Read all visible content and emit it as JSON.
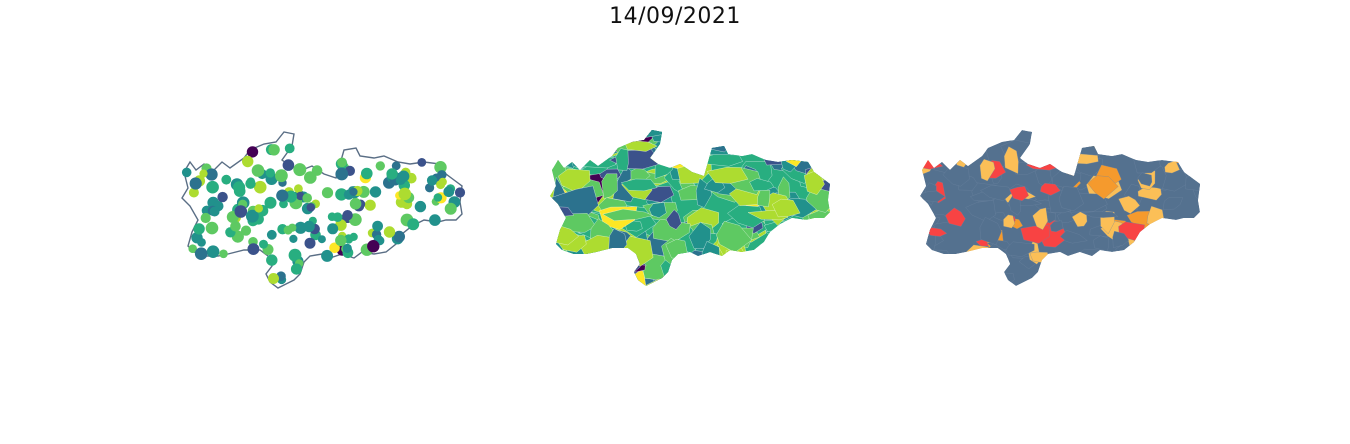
{
  "title": "14/09/2021",
  "colors": {
    "outline": "#5a6e85",
    "viridis": [
      "#440154",
      "#3b528b",
      "#2c728e",
      "#21918c",
      "#28ae80",
      "#5ec962",
      "#addc30",
      "#fde725"
    ],
    "status": {
      "base": "#54718f",
      "medium": "#fbbf57",
      "high": "#f84343",
      "mid_orange": "#f59a2d"
    }
  },
  "panels": [
    {
      "name": "points-map",
      "kind": "bubble"
    },
    {
      "name": "choropleth-map",
      "kind": "choropleth"
    },
    {
      "name": "category-map",
      "kind": "categorical"
    }
  ]
}
